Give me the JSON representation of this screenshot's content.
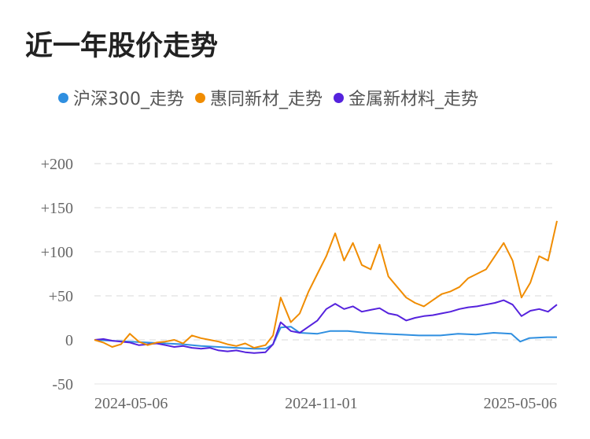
{
  "page_title": "近一年股价走势",
  "chart_data": {
    "type": "line",
    "title": "近一年股价走势",
    "xlabel": "",
    "ylabel": "",
    "ylim": [
      -50,
      200
    ],
    "yticks": [
      -50,
      0,
      50,
      100,
      150,
      200
    ],
    "ytick_labels": [
      "-50",
      "0",
      "+50",
      "+100",
      "+150",
      "+200"
    ],
    "xtick_labels": [
      "2024-05-06",
      "2024-11-01",
      "2025-05-06"
    ],
    "grid": true,
    "legend_position": "top",
    "series": [
      {
        "name": "沪深300_走势",
        "color": "#2f8fe0",
        "points": [
          [
            "2024-05-06",
            0
          ],
          [
            "2024-05-20",
            -1
          ],
          [
            "2024-06-03",
            -2
          ],
          [
            "2024-06-17",
            -3
          ],
          [
            "2024-07-01",
            -4
          ],
          [
            "2024-07-15",
            -5
          ],
          [
            "2024-07-29",
            -7
          ],
          [
            "2024-08-12",
            -8
          ],
          [
            "2024-08-26",
            -9
          ],
          [
            "2024-09-09",
            -10
          ],
          [
            "2024-09-18",
            -10
          ],
          [
            "2024-09-24",
            -5
          ],
          [
            "2024-09-30",
            14
          ],
          [
            "2024-10-08",
            15
          ],
          [
            "2024-10-15",
            8
          ],
          [
            "2024-10-29",
            7
          ],
          [
            "2024-11-08",
            10
          ],
          [
            "2024-11-22",
            10
          ],
          [
            "2024-12-06",
            8
          ],
          [
            "2024-12-20",
            7
          ],
          [
            "2025-01-03",
            6
          ],
          [
            "2025-01-17",
            5
          ],
          [
            "2025-02-03",
            5
          ],
          [
            "2025-02-17",
            7
          ],
          [
            "2025-03-03",
            6
          ],
          [
            "2025-03-17",
            8
          ],
          [
            "2025-03-31",
            7
          ],
          [
            "2025-04-07",
            -2
          ],
          [
            "2025-04-14",
            2
          ],
          [
            "2025-04-28",
            3
          ],
          [
            "2025-05-06",
            3
          ]
        ]
      },
      {
        "name": "惠同新材_走势",
        "color": "#f08c00",
        "points": [
          [
            "2024-05-06",
            0
          ],
          [
            "2024-05-13",
            -3
          ],
          [
            "2024-05-20",
            -8
          ],
          [
            "2024-05-27",
            -5
          ],
          [
            "2024-06-03",
            7
          ],
          [
            "2024-06-10",
            -2
          ],
          [
            "2024-06-17",
            -6
          ],
          [
            "2024-06-24",
            -3
          ],
          [
            "2024-07-01",
            -2
          ],
          [
            "2024-07-08",
            0
          ],
          [
            "2024-07-15",
            -4
          ],
          [
            "2024-07-22",
            5
          ],
          [
            "2024-07-29",
            2
          ],
          [
            "2024-08-05",
            0
          ],
          [
            "2024-08-12",
            -2
          ],
          [
            "2024-08-19",
            -5
          ],
          [
            "2024-08-26",
            -7
          ],
          [
            "2024-09-02",
            -4
          ],
          [
            "2024-09-09",
            -9
          ],
          [
            "2024-09-18",
            -6
          ],
          [
            "2024-09-24",
            5
          ],
          [
            "2024-09-30",
            48
          ],
          [
            "2024-10-08",
            20
          ],
          [
            "2024-10-15",
            30
          ],
          [
            "2024-10-22",
            55
          ],
          [
            "2024-10-29",
            75
          ],
          [
            "2024-11-05",
            95
          ],
          [
            "2024-11-12",
            121
          ],
          [
            "2024-11-19",
            90
          ],
          [
            "2024-11-26",
            110
          ],
          [
            "2024-12-03",
            85
          ],
          [
            "2024-12-10",
            80
          ],
          [
            "2024-12-17",
            108
          ],
          [
            "2024-12-24",
            72
          ],
          [
            "2024-12-31",
            60
          ],
          [
            "2025-01-07",
            48
          ],
          [
            "2025-01-14",
            42
          ],
          [
            "2025-01-21",
            38
          ],
          [
            "2025-01-28",
            45
          ],
          [
            "2025-02-04",
            52
          ],
          [
            "2025-02-11",
            55
          ],
          [
            "2025-02-18",
            60
          ],
          [
            "2025-02-25",
            70
          ],
          [
            "2025-03-04",
            75
          ],
          [
            "2025-03-11",
            80
          ],
          [
            "2025-03-18",
            95
          ],
          [
            "2025-03-25",
            110
          ],
          [
            "2025-04-01",
            90
          ],
          [
            "2025-04-08",
            48
          ],
          [
            "2025-04-15",
            65
          ],
          [
            "2025-04-22",
            95
          ],
          [
            "2025-04-29",
            90
          ],
          [
            "2025-05-06",
            135
          ]
        ]
      },
      {
        "name": "金属新材料_走势",
        "color": "#5522dd",
        "points": [
          [
            "2024-05-06",
            0
          ],
          [
            "2024-05-13",
            1
          ],
          [
            "2024-05-20",
            -1
          ],
          [
            "2024-05-27",
            -2
          ],
          [
            "2024-06-03",
            -3
          ],
          [
            "2024-06-10",
            -6
          ],
          [
            "2024-06-17",
            -5
          ],
          [
            "2024-06-24",
            -4
          ],
          [
            "2024-07-01",
            -6
          ],
          [
            "2024-07-08",
            -8
          ],
          [
            "2024-07-15",
            -7
          ],
          [
            "2024-07-22",
            -9
          ],
          [
            "2024-07-29",
            -10
          ],
          [
            "2024-08-05",
            -9
          ],
          [
            "2024-08-12",
            -12
          ],
          [
            "2024-08-19",
            -13
          ],
          [
            "2024-08-26",
            -12
          ],
          [
            "2024-09-02",
            -14
          ],
          [
            "2024-09-09",
            -15
          ],
          [
            "2024-09-18",
            -14
          ],
          [
            "2024-09-24",
            -5
          ],
          [
            "2024-09-30",
            20
          ],
          [
            "2024-10-08",
            10
          ],
          [
            "2024-10-15",
            8
          ],
          [
            "2024-10-22",
            15
          ],
          [
            "2024-10-29",
            22
          ],
          [
            "2024-11-05",
            35
          ],
          [
            "2024-11-12",
            41
          ],
          [
            "2024-11-19",
            35
          ],
          [
            "2024-11-26",
            38
          ],
          [
            "2024-12-03",
            32
          ],
          [
            "2024-12-10",
            34
          ],
          [
            "2024-12-17",
            36
          ],
          [
            "2024-12-24",
            30
          ],
          [
            "2024-12-31",
            28
          ],
          [
            "2025-01-07",
            22
          ],
          [
            "2025-01-14",
            25
          ],
          [
            "2025-01-21",
            27
          ],
          [
            "2025-01-28",
            28
          ],
          [
            "2025-02-04",
            30
          ],
          [
            "2025-02-11",
            32
          ],
          [
            "2025-02-18",
            35
          ],
          [
            "2025-02-25",
            37
          ],
          [
            "2025-03-04",
            38
          ],
          [
            "2025-03-11",
            40
          ],
          [
            "2025-03-18",
            42
          ],
          [
            "2025-03-25",
            45
          ],
          [
            "2025-04-01",
            40
          ],
          [
            "2025-04-08",
            27
          ],
          [
            "2025-04-15",
            33
          ],
          [
            "2025-04-22",
            35
          ],
          [
            "2025-04-29",
            32
          ],
          [
            "2025-05-06",
            40
          ]
        ]
      }
    ]
  }
}
